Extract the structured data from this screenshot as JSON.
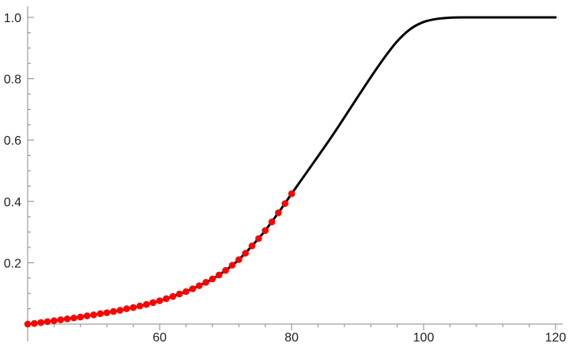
{
  "chart_data": {
    "type": "line",
    "title": "",
    "xlabel": "",
    "ylabel": "",
    "xlim": [
      40,
      120
    ],
    "ylim": [
      0,
      1.0
    ],
    "grid": false,
    "x_major_ticks": [
      60,
      80,
      100,
      120
    ],
    "y_major_ticks": [
      0.2,
      0.4,
      0.6,
      0.8,
      1.0
    ],
    "x_tick_labels": [
      "60",
      "80",
      "100",
      "120"
    ],
    "y_tick_labels": [
      "0.2",
      "0.4",
      "0.6",
      "0.8",
      "1.0"
    ],
    "x_minor_step": 4,
    "y_minor_step": 0.05,
    "series": [
      {
        "kind": "line",
        "color": "#000000",
        "points": [
          [
            40,
            0.0
          ],
          [
            42,
            0.005
          ],
          [
            44,
            0.011
          ],
          [
            46,
            0.017
          ],
          [
            48,
            0.023
          ],
          [
            50,
            0.03
          ],
          [
            52,
            0.037
          ],
          [
            54,
            0.045
          ],
          [
            56,
            0.054
          ],
          [
            58,
            0.064
          ],
          [
            60,
            0.076
          ],
          [
            62,
            0.09
          ],
          [
            64,
            0.106
          ],
          [
            66,
            0.125
          ],
          [
            68,
            0.147
          ],
          [
            70,
            0.175
          ],
          [
            72,
            0.21
          ],
          [
            74,
            0.255
          ],
          [
            76,
            0.305
          ],
          [
            78,
            0.363
          ],
          [
            80,
            0.425
          ],
          [
            82,
            0.486
          ],
          [
            84,
            0.547
          ],
          [
            86,
            0.609
          ],
          [
            88,
            0.674
          ],
          [
            90,
            0.74
          ],
          [
            92,
            0.805
          ],
          [
            94,
            0.867
          ],
          [
            96,
            0.922
          ],
          [
            98,
            0.962
          ],
          [
            100,
            0.985
          ],
          [
            102,
            0.995
          ],
          [
            104,
            0.999
          ],
          [
            106,
            1.0
          ],
          [
            110,
            1.0
          ],
          [
            115,
            1.0
          ],
          [
            120,
            1.0
          ]
        ]
      },
      {
        "kind": "scatter",
        "color": "#ff0000",
        "points": [
          [
            40,
            0.0
          ],
          [
            41,
            0.002
          ],
          [
            42,
            0.005
          ],
          [
            43,
            0.008
          ],
          [
            44,
            0.011
          ],
          [
            45,
            0.014
          ],
          [
            46,
            0.017
          ],
          [
            47,
            0.02
          ],
          [
            48,
            0.023
          ],
          [
            49,
            0.027
          ],
          [
            50,
            0.03
          ],
          [
            51,
            0.034
          ],
          [
            52,
            0.037
          ],
          [
            53,
            0.041
          ],
          [
            54,
            0.045
          ],
          [
            55,
            0.05
          ],
          [
            56,
            0.054
          ],
          [
            57,
            0.059
          ],
          [
            58,
            0.064
          ],
          [
            59,
            0.07
          ],
          [
            60,
            0.076
          ],
          [
            61,
            0.083
          ],
          [
            62,
            0.09
          ],
          [
            63,
            0.098
          ],
          [
            64,
            0.106
          ],
          [
            65,
            0.115
          ],
          [
            66,
            0.125
          ],
          [
            67,
            0.136
          ],
          [
            68,
            0.147
          ],
          [
            69,
            0.16
          ],
          [
            70,
            0.175
          ],
          [
            71,
            0.192
          ],
          [
            72,
            0.21
          ],
          [
            73,
            0.231
          ],
          [
            74,
            0.255
          ],
          [
            75,
            0.279
          ],
          [
            76,
            0.305
          ],
          [
            77,
            0.333
          ],
          [
            78,
            0.363
          ],
          [
            79,
            0.393
          ],
          [
            80,
            0.425
          ]
        ]
      }
    ]
  }
}
